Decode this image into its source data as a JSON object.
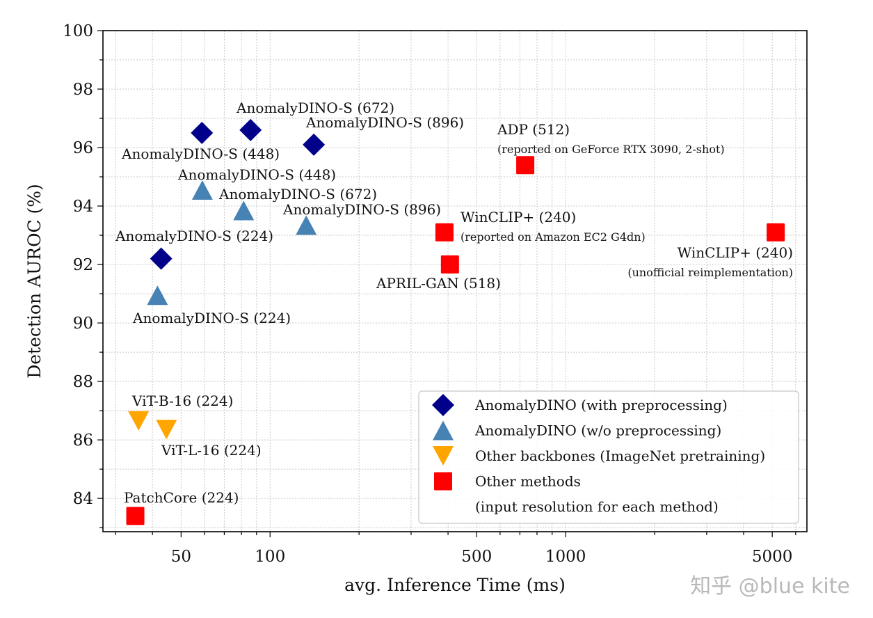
{
  "chart_data": {
    "type": "scatter",
    "xlabel": "avg. Inference Time (ms)",
    "ylabel": "Detection AUROC (%)",
    "xscale": "log",
    "xlim": [
      27.2,
      6550
    ],
    "ylim": [
      82.86,
      100
    ],
    "grid": true,
    "legend_placement": "lower-right",
    "x_ticks": [
      50,
      100,
      500,
      1000,
      5000
    ],
    "x_tick_labels": [
      "50",
      "100",
      "500",
      "1000",
      "5000"
    ],
    "y_ticks": [
      84,
      86,
      88,
      90,
      92,
      94,
      96,
      98,
      100
    ],
    "y_tick_labels": [
      "84",
      "86",
      "88",
      "90",
      "92",
      "94",
      "96",
      "98",
      "100"
    ],
    "series": [
      {
        "name": "AnomalyDINO (with preprocessing)",
        "marker": "diamond",
        "color": "#00008B",
        "points": [
          {
            "x": 42.8,
            "y": 92.2,
            "label": "AnomalyDINO-S (224)"
          },
          {
            "x": 58.8,
            "y": 96.5,
            "label": "AnomalyDINO-S (448)"
          },
          {
            "x": 85.9,
            "y": 96.6,
            "label": "AnomalyDINO-S (672)"
          },
          {
            "x": 140.6,
            "y": 96.1,
            "label": "AnomalyDINO-S (896)"
          }
        ]
      },
      {
        "name": "AnomalyDINO (w/o preprocessing)",
        "marker": "triangle-up",
        "color": "#4682B4",
        "points": [
          {
            "x": 41.6,
            "y": 90.9,
            "label": "AnomalyDINO-S (224)"
          },
          {
            "x": 59.0,
            "y": 94.5,
            "label": "AnomalyDINO-S (448)"
          },
          {
            "x": 81.4,
            "y": 93.8,
            "label": "AnomalyDINO-S (672)"
          },
          {
            "x": 132.5,
            "y": 93.3,
            "label": "AnomalyDINO-S (896)"
          }
        ]
      },
      {
        "name": "Other backbones (ImageNet pretraining)",
        "marker": "triangle-down",
        "color": "#FFA500",
        "points": [
          {
            "x": 35.9,
            "y": 86.7,
            "label": "ViT-B-16 (224)"
          },
          {
            "x": 44.6,
            "y": 86.4,
            "label": "ViT-L-16 (224)"
          }
        ]
      },
      {
        "name": "Other methods",
        "marker": "square",
        "color": "#FF0000",
        "points": [
          {
            "x": 35.0,
            "y": 83.4,
            "label": "PatchCore (224)"
          },
          {
            "x": 730,
            "y": 95.4,
            "label": "ADP (512)",
            "note": "(reported on GeForce RTX 3090, 2-shot)"
          },
          {
            "x": 389,
            "y": 93.1,
            "label": "WinCLIP+ (240)",
            "note": "(reported on Amazon EC2 G4dn)"
          },
          {
            "x": 406,
            "y": 92.0,
            "label": "APRIL-GAN (518)"
          },
          {
            "x": 5135,
            "y": 93.1,
            "label": "WinCLIP+ (240)",
            "note": "(unofficial reimplementation)"
          }
        ]
      }
    ],
    "legend_note": "(input resolution for each method)"
  },
  "watermark": "知乎 @blue kite"
}
